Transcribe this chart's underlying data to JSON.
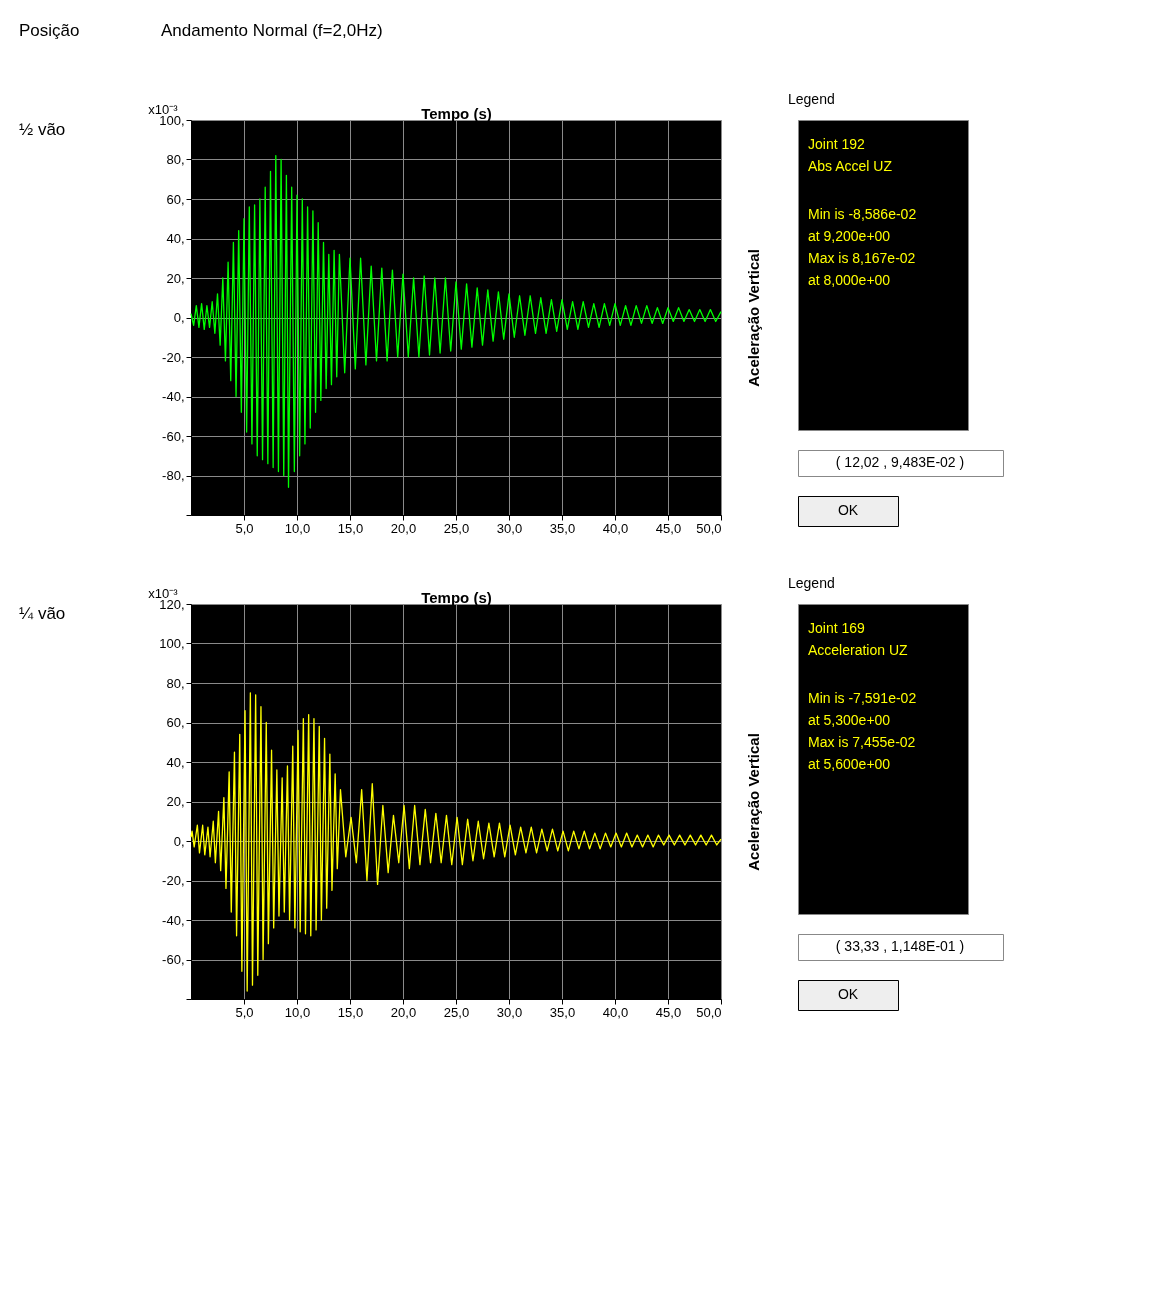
{
  "chart_data": [
    {
      "type": "line",
      "title": "Andamento Normal (f=2,0Hz)",
      "xlabel": "Tempo (s)",
      "ylabel": "Aceleração Vertical",
      "annotations": [
        "Posição",
        "½ vão",
        "x10⁻³",
        "Legend",
        "Joint 192",
        "Abs Accel UZ",
        "Min is -8,586e-02",
        "at 9,200e+00",
        "Max is 8,167e-02",
        "at 8,000e+00",
        "( 12,02 , 9,483E-02 )",
        "OK"
      ],
      "x": [
        0,
        0.25,
        0.5,
        0.75,
        1,
        1.25,
        1.5,
        1.75,
        2,
        2.25,
        2.5,
        2.75,
        3,
        3.25,
        3.5,
        3.75,
        4,
        4.25,
        4.5,
        4.75,
        5,
        5.25,
        5.5,
        5.75,
        6,
        6.25,
        6.5,
        6.75,
        7,
        7.25,
        7.5,
        7.75,
        8,
        8.25,
        8.5,
        8.75,
        9,
        9.2,
        9.5,
        9.75,
        10,
        10.25,
        10.5,
        10.75,
        11,
        11.25,
        11.5,
        11.75,
        12,
        12.25,
        12.5,
        12.75,
        13,
        13.25,
        13.5,
        13.75,
        14,
        14.5,
        15,
        15.5,
        16,
        16.5,
        17,
        17.5,
        18,
        18.5,
        19,
        19.5,
        20,
        20.5,
        21,
        21.5,
        22,
        22.5,
        23,
        23.5,
        24,
        24.5,
        25,
        25.5,
        26,
        26.5,
        27,
        27.5,
        28,
        28.5,
        29,
        29.5,
        30,
        30.5,
        31,
        31.5,
        32,
        32.5,
        33,
        33.5,
        34,
        34.5,
        35,
        35.5,
        36,
        36.5,
        37,
        37.5,
        38,
        38.5,
        39,
        39.5,
        40,
        40.5,
        41,
        41.5,
        42,
        42.5,
        43,
        43.5,
        44,
        44.5,
        45,
        45.5,
        46,
        46.5,
        47,
        47.5,
        48,
        48.5,
        49,
        49.5,
        50
      ],
      "series": [
        {
          "color": "#00ff00",
          "values": [
            2,
            -4,
            6,
            -5,
            7,
            -6,
            6,
            -5,
            8,
            -8,
            12,
            -14,
            20,
            -22,
            28,
            -32,
            38,
            -40,
            44,
            -48,
            50,
            -58,
            56,
            -64,
            57,
            -70,
            60,
            -72,
            66,
            -74,
            74,
            -76,
            82,
            -78,
            80,
            -80,
            72,
            -86,
            66,
            -78,
            62,
            -70,
            60,
            -64,
            56,
            -56,
            54,
            -48,
            48,
            -42,
            38,
            -36,
            32,
            -34,
            34,
            -30,
            32,
            -28,
            30,
            -26,
            30,
            -24,
            26,
            -22,
            25,
            -22,
            24,
            -20,
            22,
            -20,
            20,
            -20,
            21,
            -19,
            20,
            -18,
            20,
            -17,
            18,
            -16,
            17,
            -15,
            15,
            -14,
            14,
            -12,
            13,
            -11,
            12,
            -10,
            11,
            -9,
            11,
            -8,
            10,
            -8,
            9,
            -7,
            9,
            -6,
            8,
            -6,
            8,
            -5,
            7,
            -5,
            7,
            -4,
            7,
            -4,
            6,
            -4,
            6,
            -3,
            6,
            -3,
            5,
            -3,
            5,
            -2,
            5,
            -2,
            4,
            -2,
            4,
            -2,
            4,
            -2,
            3
          ]
        }
      ],
      "xlim": [
        0,
        50
      ],
      "xticks": [
        {
          "value": 5,
          "label": "5,0"
        },
        {
          "value": 10,
          "label": "10,0"
        },
        {
          "value": 15,
          "label": "15,0"
        },
        {
          "value": 20,
          "label": "20,0"
        },
        {
          "value": 25,
          "label": "25,0"
        },
        {
          "value": 30,
          "label": "30,0"
        },
        {
          "value": 35,
          "label": "35,0"
        },
        {
          "value": 40,
          "label": "40,0"
        },
        {
          "value": 45,
          "label": "45,0"
        },
        {
          "value": 50,
          "label": "50,0"
        }
      ],
      "ylim": [
        -100,
        100
      ],
      "yticks": [
        {
          "value": -100,
          "label": null
        },
        {
          "value": -80,
          "label": "-80,"
        },
        {
          "value": -60,
          "label": "-60,"
        },
        {
          "value": -40,
          "label": "-40,"
        },
        {
          "value": -20,
          "label": "-20,"
        },
        {
          "value": 0,
          "label": "0,"
        },
        {
          "value": 20,
          "label": "20,"
        },
        {
          "value": 40,
          "label": "40,"
        },
        {
          "value": 60,
          "label": "60,"
        },
        {
          "value": 80,
          "label": "80,"
        },
        {
          "value": 100,
          "label": "100,"
        }
      ],
      "grid": true
    },
    {
      "type": "line",
      "xlabel": "Tempo (s)",
      "ylabel": "Aceleração Vertical",
      "annotations": [
        "¼ vão",
        "x10⁻³",
        "Legend",
        "Joint 169",
        "Acceleration UZ",
        "Min is -7,591e-02",
        "at 5,300e+00",
        "Max is 7,455e-02",
        "at 5,600e+00",
        "( 33,33 , 1,148E-01 )",
        "OK"
      ],
      "x": [
        0,
        0.1,
        0.3,
        0.6,
        0.8,
        1.1,
        1.3,
        1.6,
        1.8,
        2.1,
        2.3,
        2.6,
        2.8,
        3.1,
        3.3,
        3.6,
        3.8,
        4.1,
        4.3,
        4.6,
        4.8,
        5.1,
        5.3,
        5.6,
        5.8,
        6.1,
        6.3,
        6.6,
        6.8,
        7.1,
        7.3,
        7.6,
        7.8,
        8.1,
        8.3,
        8.6,
        8.8,
        9.1,
        9.3,
        9.6,
        9.8,
        10.1,
        10.3,
        10.6,
        10.8,
        11.1,
        11.3,
        11.6,
        11.8,
        12.1,
        12.3,
        12.6,
        12.8,
        13.1,
        13.3,
        13.6,
        13.8,
        14.1,
        14.6,
        15.1,
        15.6,
        16.1,
        16.6,
        17.1,
        17.6,
        18.1,
        18.6,
        19.1,
        19.6,
        20.1,
        20.6,
        21.1,
        21.6,
        22.1,
        22.6,
        23.1,
        23.6,
        24.1,
        24.6,
        25.1,
        25.6,
        26.1,
        26.6,
        27.1,
        27.6,
        28.1,
        28.6,
        29.1,
        29.6,
        30.1,
        30.6,
        31.1,
        31.6,
        32.1,
        32.6,
        33.1,
        33.6,
        34.1,
        34.6,
        35.1,
        35.6,
        36.1,
        36.6,
        37.1,
        37.6,
        38.1,
        38.6,
        39.1,
        39.6,
        40.1,
        40.6,
        41.1,
        41.6,
        42.1,
        42.6,
        43.1,
        43.6,
        44.1,
        44.6,
        45.1,
        45.6,
        46.1,
        46.6,
        47.1,
        47.6,
        48.1,
        48.6,
        49.1,
        49.6,
        50
      ],
      "series": [
        {
          "color": "#ffff00",
          "values": [
            2,
            5,
            -3,
            8,
            -6,
            8,
            -7,
            7,
            -8,
            10,
            -11,
            15,
            -15,
            22,
            -24,
            35,
            -36,
            45,
            -48,
            54,
            -66,
            66,
            -76,
            75,
            -73,
            74,
            -68,
            68,
            -60,
            60,
            -52,
            46,
            -44,
            36,
            -38,
            32,
            -36,
            38,
            -40,
            48,
            -44,
            56,
            -46,
            62,
            -47,
            64,
            -48,
            62,
            -45,
            58,
            -40,
            52,
            -34,
            44,
            -25,
            34,
            -14,
            26,
            -8,
            12,
            -11,
            26,
            -20,
            29,
            -22,
            18,
            -16,
            13,
            -11,
            18,
            -14,
            18,
            -12,
            16,
            -11,
            14,
            -11,
            13,
            -12,
            12,
            -12,
            11,
            -10,
            10,
            -9,
            9,
            -8,
            9,
            -8,
            8,
            -7,
            7,
            -6,
            7,
            -6,
            6,
            -5,
            6,
            -5,
            5,
            -5,
            5,
            -4,
            5,
            -4,
            4,
            -4,
            4,
            -3,
            4,
            -3,
            4,
            -3,
            3,
            -3,
            3,
            -3,
            3,
            -2,
            3,
            -2,
            3,
            -2,
            3,
            -2,
            3,
            -2,
            3,
            -2,
            1
          ]
        }
      ],
      "xlim": [
        0,
        50
      ],
      "xticks": [
        {
          "value": 5,
          "label": "5,0"
        },
        {
          "value": 10,
          "label": "10,0"
        },
        {
          "value": 15,
          "label": "15,0"
        },
        {
          "value": 20,
          "label": "20,0"
        },
        {
          "value": 25,
          "label": "25,0"
        },
        {
          "value": 30,
          "label": "30,0"
        },
        {
          "value": 35,
          "label": "35,0"
        },
        {
          "value": 40,
          "label": "40,0"
        },
        {
          "value": 45,
          "label": "45,0"
        },
        {
          "value": 50,
          "label": "50,0"
        }
      ],
      "ylim": [
        -80,
        120
      ],
      "yticks": [
        {
          "value": -80,
          "label": null
        },
        {
          "value": -60,
          "label": "-60,"
        },
        {
          "value": -40,
          "label": "-40,"
        },
        {
          "value": -20,
          "label": "-20,"
        },
        {
          "value": 0,
          "label": "0,"
        },
        {
          "value": 20,
          "label": "20,"
        },
        {
          "value": 40,
          "label": "40,"
        },
        {
          "value": 60,
          "label": "60,"
        },
        {
          "value": 80,
          "label": "80,"
        },
        {
          "value": 100,
          "label": "100,"
        },
        {
          "value": 120,
          "label": "120,"
        }
      ],
      "grid": true
    }
  ]
}
